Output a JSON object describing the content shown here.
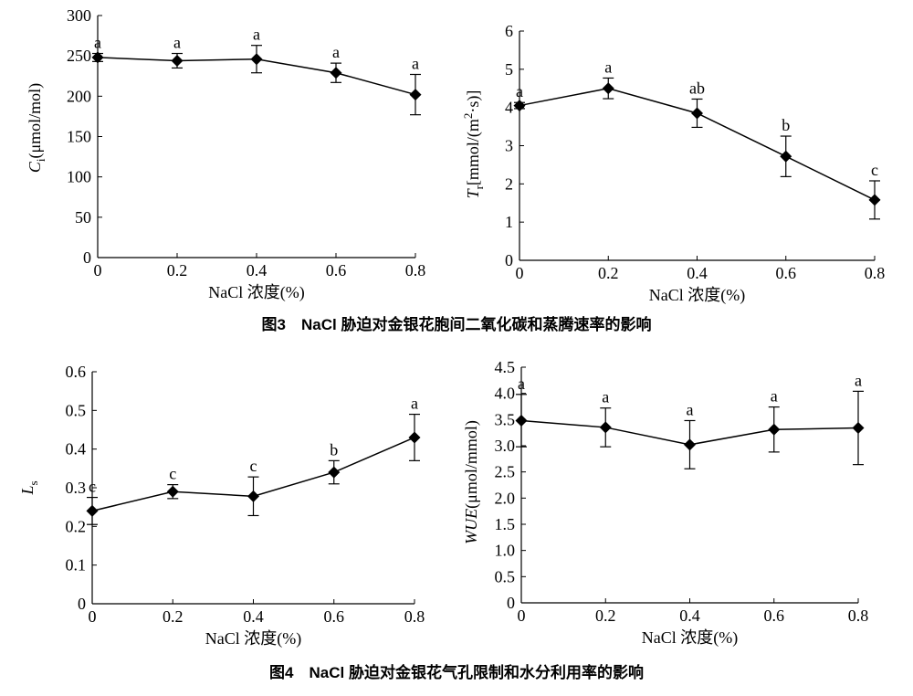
{
  "captions": {
    "fig3": "图3　NaCl 胁迫对金银花胞间二氧化碳和蒸腾速率的影响",
    "fig4": "图4　NaCl 胁迫对金银花气孔限制和水分利用率的影响"
  },
  "chart_data": [
    {
      "type": "line",
      "title": "",
      "xlabel": "NaCl 浓度(%)",
      "ylabel": "Ci(μmol/mol)",
      "ylabel_main": "C",
      "ylabel_sub": "i",
      "ylabel_rest": "(μmol/mol)",
      "x": [
        0,
        0.2,
        0.4,
        0.6,
        0.8
      ],
      "x_ticks": [
        "0",
        "0.2",
        "0.4",
        "0.6",
        "0.8"
      ],
      "y": [
        248,
        244,
        246,
        229,
        202
      ],
      "err": [
        5,
        9,
        17,
        12,
        25
      ],
      "labels": [
        "a",
        "a",
        "a",
        "a",
        "a"
      ],
      "y_ticks": [
        "0",
        "50",
        "100",
        "150",
        "200",
        "250",
        "300"
      ],
      "xlim": [
        0,
        0.8
      ],
      "ylim": [
        0,
        300
      ],
      "grid": false
    },
    {
      "type": "line",
      "title": "",
      "xlabel": "NaCl 浓度(%)",
      "ylabel": "Tr[mmol/(m2·s)]",
      "ylabel_main": "T",
      "ylabel_sub": "r",
      "ylabel_rest": "[mmol/(m",
      "ylabel_sup": "2",
      "ylabel_tail": "·s)]",
      "x": [
        0,
        0.2,
        0.4,
        0.6,
        0.8
      ],
      "x_ticks": [
        "0",
        "0.2",
        "0.4",
        "0.6",
        "0.8"
      ],
      "y": [
        4.05,
        4.5,
        3.85,
        2.72,
        1.58
      ],
      "err": [
        0.08,
        0.27,
        0.37,
        0.53,
        0.5
      ],
      "labels": [
        "a",
        "a",
        "ab",
        "b",
        "c"
      ],
      "y_ticks": [
        "0",
        "1",
        "2",
        "3",
        "4",
        "5",
        "6"
      ],
      "xlim": [
        0,
        0.8
      ],
      "ylim": [
        0,
        6
      ],
      "grid": false
    },
    {
      "type": "line",
      "title": "",
      "xlabel": "NaCl 浓度(%)",
      "ylabel": "Ls",
      "ylabel_main": "L",
      "ylabel_sub": "s",
      "x": [
        0,
        0.2,
        0.4,
        0.6,
        0.8
      ],
      "x_ticks": [
        "0",
        "0.2",
        "0.4",
        "0.6",
        "0.8"
      ],
      "y": [
        0.24,
        0.29,
        0.278,
        0.34,
        0.43
      ],
      "err": [
        0.035,
        0.018,
        0.05,
        0.03,
        0.06
      ],
      "labels": [
        "c",
        "c",
        "c",
        "b",
        "a"
      ],
      "y_ticks": [
        "0",
        "0.1",
        "0.2",
        "0.3",
        "0.4",
        "0.5",
        "0.6"
      ],
      "xlim": [
        0,
        0.8
      ],
      "ylim": [
        0,
        0.6
      ],
      "grid": false
    },
    {
      "type": "line",
      "title": "",
      "xlabel": "NaCl 浓度(%)",
      "ylabel": "WUE(μmol/mmol)",
      "ylabel_main": "WUE",
      "ylabel_rest": "(μmol/mmol)",
      "x": [
        0,
        0.2,
        0.4,
        0.6,
        0.8
      ],
      "x_ticks": [
        "0",
        "0.2",
        "0.4",
        "0.6",
        "0.8"
      ],
      "y": [
        3.48,
        3.35,
        3.02,
        3.31,
        3.34
      ],
      "err": [
        0.5,
        0.37,
        0.46,
        0.43,
        0.7
      ],
      "labels": [
        "a",
        "a",
        "a",
        "a",
        "a"
      ],
      "y_ticks": [
        "0",
        "0.5",
        "1.0",
        "1.5",
        "2.0",
        "2.5",
        "3.0",
        "3.5",
        "4.0",
        "4.5"
      ],
      "xlim": [
        0,
        0.8
      ],
      "ylim": [
        0,
        4.5
      ],
      "grid": false
    }
  ]
}
